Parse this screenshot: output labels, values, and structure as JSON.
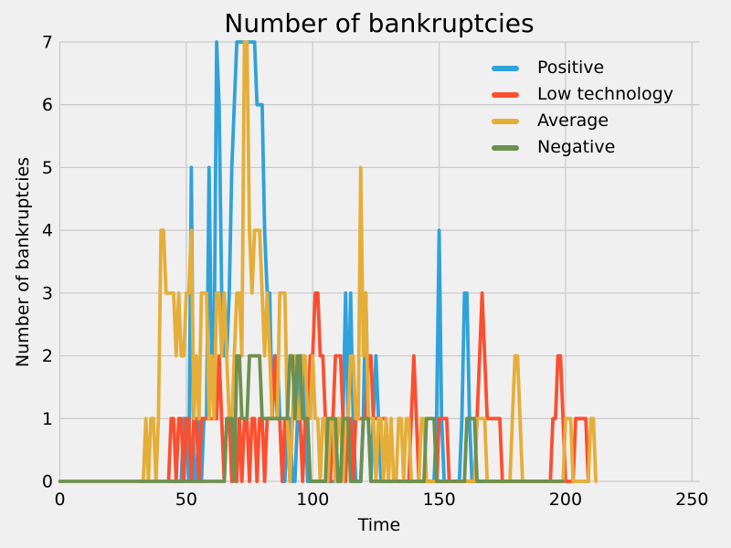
{
  "styles": {
    "background": "#f0f0f0",
    "grid_color": "#cbcbcb",
    "text_color": "#000000"
  },
  "chart_data": {
    "type": "line",
    "title": "Number of bankruptcies",
    "xlabel": "Time",
    "ylabel": "Number of bankruptcies",
    "xlim": [
      0,
      253
    ],
    "ylim": [
      0,
      7
    ],
    "xticks": [
      0,
      50,
      100,
      150,
      200,
      250
    ],
    "yticks": [
      0,
      1,
      2,
      3,
      4,
      5,
      6,
      7
    ],
    "grid": true,
    "legend_position": "upper right",
    "legend": [
      "Positive",
      "Low technology",
      "Average",
      "Negative"
    ],
    "series": [
      {
        "name": "Positive",
        "color": "#30a2da",
        "t_start": 44,
        "t_step": 1,
        "values": [
          0,
          0,
          0,
          0,
          0,
          1,
          1,
          0,
          5,
          0,
          0,
          1,
          0,
          1,
          1,
          5,
          2,
          2,
          7,
          6,
          3,
          2,
          2,
          3,
          5,
          6,
          7,
          7,
          7,
          7,
          7,
          7,
          7,
          7,
          6,
          6,
          6,
          4,
          3,
          3,
          1,
          2,
          2,
          1,
          0,
          0,
          1,
          1,
          0,
          0,
          1,
          2,
          2,
          1,
          0,
          0,
          0,
          0,
          0,
          0,
          0,
          0,
          0,
          0,
          0,
          0,
          0,
          0,
          1,
          3,
          1,
          3,
          1,
          0,
          0,
          0,
          1,
          3,
          1,
          0,
          1,
          2,
          1,
          0,
          0,
          0,
          0,
          0,
          0,
          0,
          0,
          0,
          0,
          0,
          0,
          0,
          0,
          0,
          0,
          0,
          0,
          0,
          0,
          0,
          0,
          1,
          4,
          1,
          0,
          0,
          0,
          0,
          0,
          0,
          0,
          1,
          3,
          3,
          1,
          0,
          0,
          0,
          0,
          0,
          0
        ]
      },
      {
        "name": "Low technology",
        "color": "#fc4f30",
        "t_start": 43,
        "t_step": 1,
        "values": [
          0,
          1,
          1,
          0,
          1,
          1,
          0,
          1,
          1,
          0,
          1,
          1,
          0,
          1,
          1,
          1,
          1,
          1,
          1,
          1,
          2,
          1,
          0,
          1,
          1,
          0,
          1,
          0,
          1,
          0,
          1,
          1,
          0,
          1,
          1,
          0,
          1,
          1,
          0,
          1,
          1,
          1,
          2,
          1,
          1,
          0,
          1,
          1,
          0,
          1,
          1,
          1,
          1,
          0,
          1,
          1,
          2,
          2,
          3,
          3,
          2,
          2,
          1,
          1,
          0,
          1,
          2,
          2,
          2,
          1,
          0,
          1,
          1,
          0,
          1,
          1,
          1,
          1,
          1,
          2,
          2,
          1,
          1,
          1,
          1,
          1,
          1,
          0,
          0,
          0,
          0,
          0,
          0,
          0,
          0,
          0,
          1,
          2,
          1,
          0,
          0,
          0,
          0,
          0,
          0,
          0,
          0,
          1,
          1,
          1,
          1,
          0,
          0,
          0,
          0,
          0,
          0,
          0,
          0,
          0,
          0,
          0,
          1,
          2,
          3,
          2,
          1,
          1,
          1,
          1,
          1,
          1,
          0,
          0,
          0,
          0,
          0,
          0,
          0,
          0,
          0,
          0,
          0,
          0,
          0,
          0,
          0,
          0,
          0,
          0,
          0,
          0,
          1,
          1,
          2,
          2,
          1,
          0,
          0,
          0,
          0,
          1,
          1,
          1,
          1,
          1,
          0
        ]
      },
      {
        "name": "Average",
        "color": "#e5ae38",
        "t_start": 32,
        "t_step": 1,
        "values": [
          0,
          0,
          1,
          0,
          1,
          1,
          0,
          1,
          4,
          4,
          3,
          3,
          3,
          3,
          2,
          3,
          2,
          2,
          3,
          3,
          4,
          1,
          2,
          1,
          3,
          3,
          3,
          1,
          2,
          1,
          3,
          3,
          2,
          3,
          2,
          1,
          1,
          2,
          3,
          3,
          2,
          7,
          7,
          4,
          3,
          4,
          4,
          4,
          3,
          2,
          3,
          2,
          1,
          1,
          1,
          3,
          3,
          3,
          1,
          0,
          1,
          2,
          1,
          1,
          2,
          2,
          1,
          1,
          2,
          1,
          1,
          0,
          1,
          1,
          0,
          1,
          1,
          0,
          1,
          1,
          0,
          1,
          1,
          2,
          2,
          1,
          1,
          5,
          2,
          3,
          1,
          1,
          1,
          0,
          1,
          1,
          0,
          1,
          0,
          1,
          0,
          0,
          1,
          1,
          0,
          1,
          1,
          0,
          0,
          0,
          0,
          1,
          1,
          0,
          0,
          0,
          0,
          0,
          0,
          0,
          0,
          0,
          0,
          0,
          0,
          0,
          0,
          0,
          0,
          0,
          0,
          0,
          0,
          1,
          1,
          1,
          1,
          0,
          0,
          0,
          0,
          0,
          0,
          0,
          0,
          0,
          0,
          1,
          2,
          2,
          1,
          0,
          0,
          0,
          0,
          0,
          0,
          0,
          0,
          0,
          0,
          0,
          0,
          0,
          0,
          0,
          0,
          0,
          1,
          1,
          1,
          0,
          0,
          0,
          0,
          0,
          0,
          0,
          1,
          1,
          0
        ]
      },
      {
        "name": "Negative",
        "color": "#6d904f",
        "t_start": 0,
        "t_step": 1,
        "values": [
          0,
          0,
          0,
          0,
          0,
          0,
          0,
          0,
          0,
          0,
          0,
          0,
          0,
          0,
          0,
          0,
          0,
          0,
          0,
          0,
          0,
          0,
          0,
          0,
          0,
          0,
          0,
          0,
          0,
          0,
          0,
          0,
          0,
          0,
          0,
          0,
          0,
          0,
          0,
          0,
          0,
          0,
          0,
          0,
          0,
          0,
          0,
          0,
          0,
          0,
          0,
          0,
          0,
          0,
          0,
          0,
          0,
          0,
          0,
          0,
          0,
          0,
          0,
          0,
          0,
          0,
          1,
          1,
          1,
          0,
          2,
          2,
          1,
          1,
          1,
          2,
          2,
          2,
          2,
          2,
          1,
          1,
          1,
          1,
          1,
          1,
          1,
          1,
          1,
          1,
          1,
          2,
          2,
          1,
          2,
          2,
          1,
          1,
          1,
          0,
          0,
          0,
          0,
          0,
          0,
          0,
          1,
          1,
          1,
          1,
          0,
          0,
          1,
          1,
          1,
          0,
          0,
          0,
          0,
          0,
          1,
          1,
          1,
          0,
          0,
          0,
          0,
          0,
          0,
          0,
          0,
          0,
          0,
          0,
          0,
          0,
          0,
          0,
          0,
          0,
          0,
          0,
          0,
          0,
          0,
          1,
          1,
          1,
          1,
          0,
          0,
          0,
          0,
          0,
          0,
          0,
          0,
          0,
          0,
          0,
          0,
          1,
          1,
          1,
          1,
          0,
          0,
          0,
          0,
          0,
          0,
          0,
          0,
          0,
          0,
          0,
          0,
          0,
          0,
          0,
          0,
          0,
          0,
          0,
          0,
          0,
          0,
          0,
          0,
          0,
          0,
          0,
          0,
          0,
          0,
          0,
          0,
          0,
          0,
          0
        ]
      }
    ]
  }
}
